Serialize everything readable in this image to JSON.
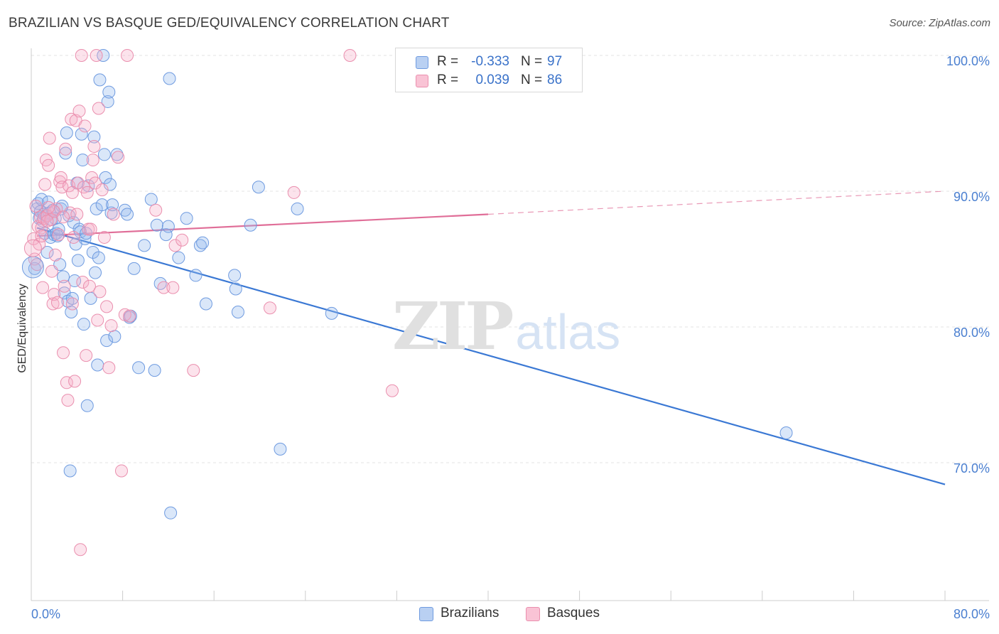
{
  "title": "BRAZILIAN VS BASQUE GED/EQUIVALENCY CORRELATION CHART",
  "source": "Source: ZipAtlas.com",
  "watermark": {
    "zip": "ZIP",
    "atlas": "atlas"
  },
  "legend": {
    "r_label": "R =",
    "n_label": "N =",
    "rows": [
      {
        "series": "Brazilians",
        "r": "-0.333",
        "n": "97",
        "fill": "#b9d0f2",
        "stroke": "#6f9be0"
      },
      {
        "series": "Basques",
        "r": "0.039",
        "n": "86",
        "fill": "#f9c3d5",
        "stroke": "#ea8fae"
      }
    ]
  },
  "chart_data": {
    "type": "scatter",
    "title": "BRAZILIAN VS BASQUE GED/EQUIVALENCY CORRELATION CHART",
    "xlabel": "",
    "ylabel": "GED/Equivalency",
    "xlim": [
      0,
      80
    ],
    "ylim": [
      62,
      100
    ],
    "x_tick_labels": [
      "0.0%",
      "80.0%"
    ],
    "y_ticks": [
      {
        "value": 70,
        "label": "70.0%"
      },
      {
        "value": 80,
        "label": "80.0%"
      },
      {
        "value": 90,
        "label": "90.0%"
      },
      {
        "value": 100,
        "label": "100.0%"
      }
    ],
    "grid": true,
    "legend_position": "bottom-center",
    "colors": {
      "Brazilians": "#3a78d4",
      "Basques": "#e06e98"
    },
    "series": [
      {
        "name": "Brazilians",
        "trend": {
          "x0": 0.5,
          "y0": 87.3,
          "x1": 80,
          "y1": 68.4,
          "style": "solid"
        },
        "points": [
          [
            0.3,
            84.3
          ],
          [
            0.5,
            88.7
          ],
          [
            0.6,
            89.1
          ],
          [
            0.7,
            88.0
          ],
          [
            0.8,
            88.5
          ],
          [
            0.9,
            89.4
          ],
          [
            1.0,
            87.8
          ],
          [
            1.1,
            88.3
          ],
          [
            1.2,
            86.9
          ],
          [
            1.3,
            88.2
          ],
          [
            1.4,
            85.5
          ],
          [
            1.5,
            89.2
          ],
          [
            1.6,
            88.4
          ],
          [
            1.7,
            86.6
          ],
          [
            1.8,
            87.9
          ],
          [
            1.9,
            88.6
          ],
          [
            2.0,
            86.8
          ],
          [
            2.1,
            88.0
          ],
          [
            2.2,
            86.9
          ],
          [
            2.3,
            86.7
          ],
          [
            2.4,
            87.2
          ],
          [
            2.5,
            84.6
          ],
          [
            2.6,
            88.7
          ],
          [
            2.7,
            88.9
          ],
          [
            2.8,
            83.7
          ],
          [
            2.9,
            82.5
          ],
          [
            3.0,
            92.8
          ],
          [
            3.1,
            94.3
          ],
          [
            3.2,
            81.9
          ],
          [
            3.3,
            88.2
          ],
          [
            3.4,
            69.4
          ],
          [
            3.5,
            81.1
          ],
          [
            3.6,
            82.1
          ],
          [
            3.7,
            87.7
          ],
          [
            3.8,
            83.4
          ],
          [
            3.9,
            86.1
          ],
          [
            4.0,
            90.6
          ],
          [
            4.1,
            84.9
          ],
          [
            4.2,
            87.2
          ],
          [
            4.3,
            87.0
          ],
          [
            4.4,
            94.2
          ],
          [
            4.5,
            92.3
          ],
          [
            4.6,
            80.2
          ],
          [
            4.7,
            86.5
          ],
          [
            4.8,
            86.9
          ],
          [
            4.9,
            74.2
          ],
          [
            5.0,
            90.4
          ],
          [
            5.2,
            82.1
          ],
          [
            5.4,
            85.5
          ],
          [
            5.5,
            94.0
          ],
          [
            5.6,
            84.0
          ],
          [
            5.7,
            88.7
          ],
          [
            5.8,
            77.2
          ],
          [
            5.9,
            85.1
          ],
          [
            6.0,
            98.2
          ],
          [
            6.2,
            89.0
          ],
          [
            6.3,
            100.0
          ],
          [
            6.4,
            92.7
          ],
          [
            6.5,
            91.0
          ],
          [
            6.6,
            79.0
          ],
          [
            6.7,
            96.6
          ],
          [
            6.8,
            97.3
          ],
          [
            6.9,
            90.5
          ],
          [
            7.0,
            88.4
          ],
          [
            7.1,
            89.0
          ],
          [
            7.3,
            79.3
          ],
          [
            7.5,
            92.7
          ],
          [
            8.2,
            88.6
          ],
          [
            8.4,
            88.3
          ],
          [
            8.6,
            80.7
          ],
          [
            8.7,
            80.8
          ],
          [
            9.0,
            84.3
          ],
          [
            9.4,
            77.0
          ],
          [
            9.9,
            86.0
          ],
          [
            10.5,
            89.4
          ],
          [
            10.8,
            76.8
          ],
          [
            11.0,
            87.5
          ],
          [
            11.3,
            83.2
          ],
          [
            11.8,
            86.8
          ],
          [
            12.0,
            87.4
          ],
          [
            12.1,
            98.3
          ],
          [
            12.2,
            66.3
          ],
          [
            12.9,
            85.1
          ],
          [
            13.6,
            88.0
          ],
          [
            14.4,
            83.8
          ],
          [
            14.8,
            86.0
          ],
          [
            15.0,
            86.2
          ],
          [
            15.3,
            81.7
          ],
          [
            17.8,
            83.8
          ],
          [
            17.9,
            82.8
          ],
          [
            18.1,
            81.1
          ],
          [
            19.2,
            87.5
          ],
          [
            19.9,
            90.3
          ],
          [
            21.8,
            71.0
          ],
          [
            23.3,
            88.7
          ],
          [
            26.3,
            81.0
          ],
          [
            66.1,
            72.2
          ]
        ]
      },
      {
        "name": "Basques",
        "trend": {
          "x0": 0.5,
          "y0": 86.7,
          "x1": 40,
          "y1": 88.3,
          "style": "solid",
          "ext_x1": 80,
          "ext_y1": 90.0,
          "ext_style": "dashed"
        },
        "points": [
          [
            0.2,
            86.5
          ],
          [
            0.3,
            85.0
          ],
          [
            0.4,
            88.9
          ],
          [
            0.5,
            84.6
          ],
          [
            0.6,
            87.4
          ],
          [
            0.7,
            86.1
          ],
          [
            0.8,
            88.1
          ],
          [
            0.9,
            87.3
          ],
          [
            1.0,
            82.9
          ],
          [
            1.1,
            88.0
          ],
          [
            1.2,
            90.5
          ],
          [
            1.3,
            92.3
          ],
          [
            1.4,
            88.2
          ],
          [
            1.5,
            91.9
          ],
          [
            1.6,
            93.9
          ],
          [
            1.7,
            87.9
          ],
          [
            1.8,
            84.1
          ],
          [
            1.9,
            81.7
          ],
          [
            2.0,
            82.4
          ],
          [
            2.1,
            85.3
          ],
          [
            2.2,
            88.7
          ],
          [
            2.3,
            81.8
          ],
          [
            2.4,
            86.8
          ],
          [
            2.5,
            90.7
          ],
          [
            2.6,
            91.0
          ],
          [
            2.7,
            90.3
          ],
          [
            2.8,
            78.1
          ],
          [
            2.9,
            83.0
          ],
          [
            3.0,
            93.1
          ],
          [
            3.1,
            75.9
          ],
          [
            3.2,
            74.6
          ],
          [
            3.3,
            90.4
          ],
          [
            3.4,
            88.4
          ],
          [
            3.5,
            95.3
          ],
          [
            3.6,
            81.7
          ],
          [
            3.7,
            86.6
          ],
          [
            3.8,
            76.0
          ],
          [
            3.9,
            95.2
          ],
          [
            4.0,
            88.3
          ],
          [
            4.1,
            90.6
          ],
          [
            4.2,
            95.9
          ],
          [
            4.3,
            63.6
          ],
          [
            4.4,
            100.0
          ],
          [
            4.5,
            83.3
          ],
          [
            4.6,
            90.3
          ],
          [
            4.7,
            94.8
          ],
          [
            4.8,
            77.9
          ],
          [
            4.9,
            89.9
          ],
          [
            5.0,
            87.2
          ],
          [
            5.1,
            83.0
          ],
          [
            5.2,
            87.2
          ],
          [
            5.3,
            91.0
          ],
          [
            5.4,
            92.3
          ],
          [
            5.5,
            93.3
          ],
          [
            5.6,
            90.6
          ],
          [
            5.7,
            100.0
          ],
          [
            5.8,
            80.5
          ],
          [
            5.9,
            96.1
          ],
          [
            6.0,
            82.6
          ],
          [
            6.2,
            90.1
          ],
          [
            6.4,
            86.6
          ],
          [
            6.6,
            81.5
          ],
          [
            6.8,
            77.0
          ],
          [
            7.0,
            80.1
          ],
          [
            7.2,
            88.3
          ],
          [
            7.6,
            92.5
          ],
          [
            7.9,
            69.4
          ],
          [
            8.2,
            80.9
          ],
          [
            8.4,
            100.0
          ],
          [
            8.6,
            80.8
          ],
          [
            10.9,
            88.6
          ],
          [
            11.6,
            82.9
          ],
          [
            12.4,
            82.9
          ],
          [
            12.6,
            86.0
          ],
          [
            13.2,
            86.4
          ],
          [
            14.2,
            76.8
          ],
          [
            20.9,
            81.4
          ],
          [
            23.0,
            89.9
          ],
          [
            27.9,
            100.0
          ],
          [
            31.6,
            75.3
          ],
          [
            2.0,
            88.5
          ],
          [
            1.5,
            88.8
          ],
          [
            2.8,
            88.1
          ],
          [
            3.6,
            89.9
          ],
          [
            0.9,
            86.7
          ],
          [
            1.4,
            87.8
          ]
        ]
      }
    ]
  }
}
